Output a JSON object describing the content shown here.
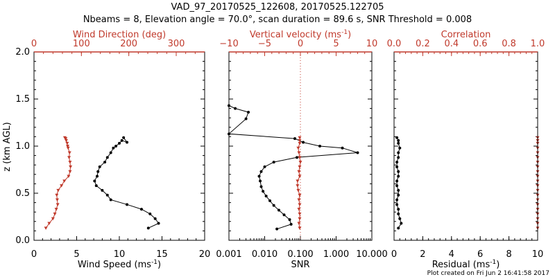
{
  "header": {
    "title_line1": "VAD_97_20170525_122608, 20170525.122705",
    "title_line2": "Nbeams = 8, Elevation angle = 70.0°, scan duration = 89.6 s, SNR Threshold = 0.008"
  },
  "footer": {
    "credit": "Plot created on Fri Jun  2 16:41:58 2017"
  },
  "colors": {
    "black": "#000000",
    "red": "#c0392b"
  },
  "chart_data": [
    {
      "type": "line",
      "panel": "left",
      "ylabel": "z (km AGL)",
      "ylabel_parts": {
        "main": "z (km AGL)"
      },
      "ylim": [
        0,
        2.0
      ],
      "yticks": [
        "0.0",
        "0.5",
        "1.0",
        "1.5",
        "2.0"
      ],
      "ytick_values": [
        0,
        0.5,
        1.0,
        1.5,
        2.0
      ],
      "bottom_axis": {
        "label": "Wind Speed (ms",
        "label_sup": "-1",
        "label_end": ")",
        "lim": [
          0,
          20
        ],
        "ticks": [
          "0",
          "5",
          "10",
          "15",
          "20"
        ],
        "tick_values": [
          0,
          5,
          10,
          15,
          20
        ]
      },
      "top_axis": {
        "label": "Wind Direction (deg)",
        "lim": [
          0,
          360
        ],
        "ticks": [
          "0",
          "100",
          "200",
          "300"
        ],
        "tick_values": [
          0,
          100,
          200,
          300
        ]
      },
      "series": [
        {
          "name": "Wind Speed",
          "axis": "bottom",
          "color": "black",
          "x": [
            13.4,
            14.6,
            14.2,
            13.6,
            12.6,
            10.9,
            9.0,
            8.6,
            8.0,
            7.3,
            7.1,
            7.4,
            7.5,
            7.7,
            8.3,
            8.6,
            9.0,
            9.3,
            9.6,
            10.0,
            10.3,
            10.9,
            10.5
          ],
          "z": [
            0.13,
            0.18,
            0.23,
            0.28,
            0.33,
            0.38,
            0.43,
            0.48,
            0.53,
            0.58,
            0.63,
            0.68,
            0.73,
            0.78,
            0.83,
            0.88,
            0.93,
            0.98,
            1.0,
            1.03,
            1.06,
            1.04,
            1.09
          ]
        },
        {
          "name": "Wind Direction",
          "axis": "top",
          "color": "red",
          "x": [
            25,
            32,
            40,
            44,
            47,
            50,
            49,
            48,
            51,
            58,
            64,
            73,
            76,
            77,
            76,
            74,
            75,
            72,
            71,
            70,
            68,
            67,
            65
          ],
          "z": [
            0.13,
            0.18,
            0.23,
            0.28,
            0.33,
            0.38,
            0.43,
            0.48,
            0.53,
            0.58,
            0.63,
            0.68,
            0.73,
            0.78,
            0.83,
            0.88,
            0.93,
            0.98,
            1.0,
            1.03,
            1.06,
            1.08,
            1.09
          ]
        }
      ]
    },
    {
      "type": "line",
      "panel": "middle",
      "ylim": [
        0,
        2.0
      ],
      "bottom_axis": {
        "label": "SNR",
        "scale": "log",
        "lim": [
          0.001,
          10.0
        ],
        "ticks": [
          "0.001",
          "0.010",
          "0.100",
          "1.000",
          "10.000"
        ],
        "tick_values": [
          0.001,
          0.01,
          0.1,
          1,
          10
        ]
      },
      "top_axis": {
        "label": "Vertical velocity (ms",
        "label_sup": "-1",
        "label_end": ")",
        "lim": [
          -10,
          10
        ],
        "ticks": [
          "−10",
          "−5",
          "0",
          "5",
          "10"
        ],
        "tick_values": [
          -10,
          -5,
          0,
          5,
          10
        ]
      },
      "reference_line": {
        "axis": "top",
        "value": 0,
        "style": "dotted",
        "color": "red"
      },
      "series": [
        {
          "name": "SNR",
          "axis": "bottom",
          "color": "black",
          "x": [
            0.022,
            0.055,
            0.05,
            0.035,
            0.025,
            0.018,
            0.014,
            0.011,
            0.009,
            0.008,
            0.0075,
            0.007,
            0.008,
            0.01,
            0.018,
            0.08,
            4.0,
            1.5,
            0.35,
            0.12,
            0.07,
            0.001,
            0.003,
            0.0035,
            0.0015,
            0.001
          ],
          "z": [
            0.12,
            0.17,
            0.22,
            0.27,
            0.32,
            0.37,
            0.42,
            0.47,
            0.52,
            0.57,
            0.63,
            0.68,
            0.73,
            0.78,
            0.83,
            0.88,
            0.93,
            0.98,
            1.0,
            1.04,
            1.08,
            1.13,
            1.29,
            1.36,
            1.4,
            1.43
          ]
        },
        {
          "name": "Vertical velocity",
          "axis": "top",
          "color": "red",
          "x": [
            -0.1,
            -0.2,
            -0.1,
            -0.1,
            -0.2,
            -0.1,
            -0.2,
            -0.1,
            -0.3,
            -0.4,
            -0.4,
            -0.1,
            -0.2,
            -0.1,
            0.0,
            -0.1,
            -0.2,
            -0.3,
            -0.1,
            -0.1,
            -0.1
          ],
          "z": [
            0.13,
            0.18,
            0.23,
            0.28,
            0.33,
            0.38,
            0.43,
            0.48,
            0.53,
            0.58,
            0.63,
            0.68,
            0.73,
            0.78,
            0.83,
            0.88,
            0.93,
            0.98,
            1.03,
            1.06,
            1.09
          ]
        }
      ]
    },
    {
      "type": "line",
      "panel": "right",
      "ylim": [
        0,
        2.0
      ],
      "bottom_axis": {
        "label": "Residual (ms",
        "label_sup": "-1",
        "label_end": ")",
        "lim": [
          0,
          10
        ],
        "ticks": [
          "0",
          "2",
          "4",
          "6",
          "8",
          "10"
        ],
        "tick_values": [
          0,
          2,
          4,
          6,
          8,
          10
        ]
      },
      "top_axis": {
        "label": "Correlation",
        "lim": [
          0.0,
          1.0
        ],
        "ticks": [
          "0.0",
          "0.2",
          "0.4",
          "0.6",
          "0.8",
          "1.0"
        ],
        "tick_values": [
          0,
          0.2,
          0.4,
          0.6,
          0.8,
          1.0
        ]
      },
      "series": [
        {
          "name": "Residual",
          "axis": "bottom",
          "color": "black",
          "x": [
            0.3,
            0.5,
            0.4,
            0.3,
            0.3,
            0.2,
            0.2,
            0.3,
            0.3,
            0.2,
            0.2,
            0.3,
            0.3,
            0.2,
            0.2,
            0.3,
            0.3,
            0.4,
            0.3,
            0.3,
            0.2
          ],
          "z": [
            0.13,
            0.18,
            0.23,
            0.28,
            0.33,
            0.38,
            0.43,
            0.48,
            0.53,
            0.58,
            0.63,
            0.68,
            0.73,
            0.78,
            0.83,
            0.88,
            0.93,
            0.98,
            1.03,
            1.06,
            1.09
          ]
        },
        {
          "name": "Correlation",
          "axis": "top",
          "color": "red",
          "x": [
            1.0,
            1.0,
            1.0,
            1.0,
            1.0,
            1.0,
            1.0,
            1.0,
            1.0,
            1.0,
            1.0,
            1.0,
            1.0,
            1.0,
            1.0,
            1.0,
            1.0,
            1.0,
            1.0,
            1.0,
            1.0
          ],
          "z": [
            0.13,
            0.18,
            0.23,
            0.28,
            0.33,
            0.38,
            0.43,
            0.48,
            0.53,
            0.58,
            0.63,
            0.68,
            0.73,
            0.78,
            0.83,
            0.88,
            0.93,
            0.98,
            1.03,
            1.06,
            1.09
          ]
        }
      ]
    }
  ]
}
